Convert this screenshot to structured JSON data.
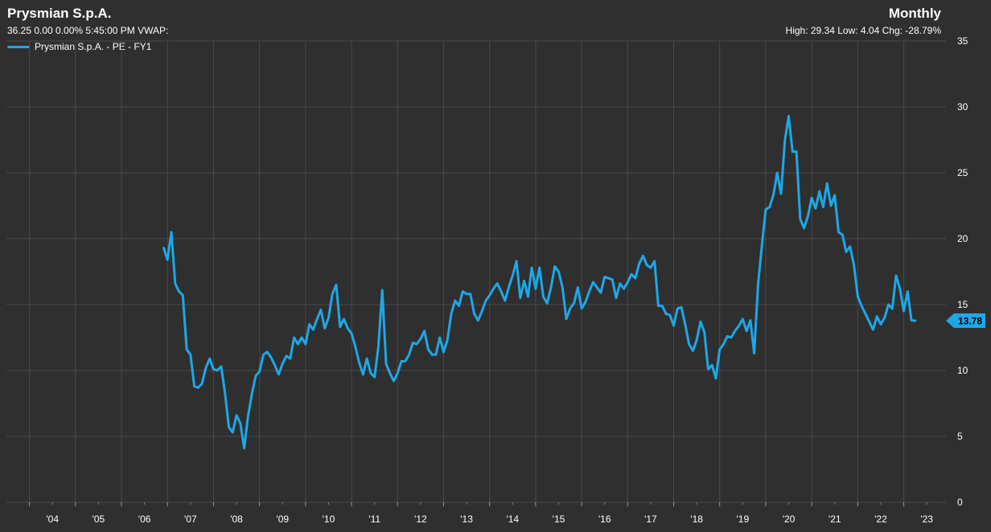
{
  "header": {
    "title": "Prysmian S.p.A.",
    "quote": "36.25 0.00 0.00% 5:45:00 PM VWAP:",
    "period": "Monthly",
    "stats": "High: 29.34 Low: 4.04 Chg: -28.79%"
  },
  "colors": {
    "background": "#2f2f2f",
    "grid": "#4a4a4a",
    "series": "#1ea7e8",
    "text": "#ffffff"
  },
  "chart_data": {
    "type": "line",
    "title": "Prysmian S.p.A.",
    "xlabel": "",
    "ylabel": "",
    "ylim": [
      0,
      35
    ],
    "yticks": [
      0,
      5,
      10,
      15,
      20,
      25,
      30,
      35
    ],
    "xtick_labels": [
      "'04",
      "'05",
      "'06",
      "'07",
      "'08",
      "'09",
      "'10",
      "'11",
      "'12",
      "'13",
      "'14",
      "'15",
      "'16",
      "'17",
      "'18",
      "'19",
      "'20",
      "'21",
      "'22",
      "'23"
    ],
    "xtick_years": [
      2004,
      2005,
      2006,
      2007,
      2008,
      2009,
      2010,
      2011,
      2012,
      2013,
      2014,
      2015,
      2016,
      2017,
      2018,
      2019,
      2020,
      2021,
      2022,
      2023
    ],
    "xlim": [
      "2003-07",
      "2023-12"
    ],
    "grid": true,
    "legend": "top-left",
    "last_value_label": "13.78",
    "series": [
      {
        "name": "Prysmian S.p.A. - PE - FY1",
        "points": [
          [
            "2006-12",
            19.3
          ],
          [
            "2007-01",
            18.4
          ],
          [
            "2007-02",
            20.5
          ],
          [
            "2007-03",
            16.6
          ],
          [
            "2007-04",
            16.0
          ],
          [
            "2007-05",
            15.7
          ],
          [
            "2007-06",
            11.6
          ],
          [
            "2007-07",
            11.2
          ],
          [
            "2007-08",
            8.8
          ],
          [
            "2007-09",
            8.7
          ],
          [
            "2007-10",
            9.0
          ],
          [
            "2007-11",
            10.2
          ],
          [
            "2007-12",
            10.9
          ],
          [
            "2008-01",
            10.1
          ],
          [
            "2008-02",
            10.0
          ],
          [
            "2008-03",
            10.3
          ],
          [
            "2008-04",
            8.3
          ],
          [
            "2008-05",
            5.7
          ],
          [
            "2008-06",
            5.3
          ],
          [
            "2008-07",
            6.6
          ],
          [
            "2008-08",
            6.0
          ],
          [
            "2008-09",
            4.1
          ],
          [
            "2008-10",
            6.5
          ],
          [
            "2008-11",
            8.2
          ],
          [
            "2008-12",
            9.6
          ],
          [
            "2009-01",
            9.9
          ],
          [
            "2009-02",
            11.2
          ],
          [
            "2009-03",
            11.4
          ],
          [
            "2009-04",
            11.0
          ],
          [
            "2009-05",
            10.4
          ],
          [
            "2009-06",
            9.7
          ],
          [
            "2009-07",
            10.5
          ],
          [
            "2009-08",
            11.1
          ],
          [
            "2009-09",
            10.9
          ],
          [
            "2009-10",
            12.5
          ],
          [
            "2009-11",
            12.0
          ],
          [
            "2009-12",
            12.5
          ],
          [
            "2010-01",
            12.0
          ],
          [
            "2010-02",
            13.5
          ],
          [
            "2010-03",
            13.1
          ],
          [
            "2010-04",
            13.9
          ],
          [
            "2010-05",
            14.6
          ],
          [
            "2010-06",
            13.2
          ],
          [
            "2010-07",
            14.0
          ],
          [
            "2010-08",
            15.8
          ],
          [
            "2010-09",
            16.5
          ],
          [
            "2010-10",
            13.3
          ],
          [
            "2010-11",
            13.9
          ],
          [
            "2010-12",
            13.2
          ],
          [
            "2011-01",
            12.8
          ],
          [
            "2011-02",
            11.8
          ],
          [
            "2011-03",
            10.6
          ],
          [
            "2011-04",
            9.7
          ],
          [
            "2011-05",
            10.9
          ],
          [
            "2011-06",
            9.8
          ],
          [
            "2011-07",
            9.5
          ],
          [
            "2011-08",
            11.8
          ],
          [
            "2011-09",
            16.1
          ],
          [
            "2011-10",
            10.5
          ],
          [
            "2011-11",
            9.8
          ],
          [
            "2011-12",
            9.2
          ],
          [
            "2012-01",
            9.8
          ],
          [
            "2012-02",
            10.7
          ],
          [
            "2012-03",
            10.7
          ],
          [
            "2012-04",
            11.2
          ],
          [
            "2012-05",
            12.1
          ],
          [
            "2012-06",
            12.0
          ],
          [
            "2012-07",
            12.4
          ],
          [
            "2012-08",
            13.0
          ],
          [
            "2012-09",
            11.6
          ],
          [
            "2012-10",
            11.2
          ],
          [
            "2012-11",
            11.2
          ],
          [
            "2012-12",
            12.5
          ],
          [
            "2013-01",
            11.4
          ],
          [
            "2013-02",
            12.3
          ],
          [
            "2013-03",
            14.3
          ],
          [
            "2013-04",
            15.3
          ],
          [
            "2013-05",
            14.9
          ],
          [
            "2013-06",
            16.0
          ],
          [
            "2013-07",
            15.8
          ],
          [
            "2013-08",
            15.8
          ],
          [
            "2013-09",
            14.3
          ],
          [
            "2013-10",
            13.8
          ],
          [
            "2013-11",
            14.5
          ],
          [
            "2013-12",
            15.3
          ],
          [
            "2014-01",
            15.7
          ],
          [
            "2014-02",
            16.2
          ],
          [
            "2014-03",
            16.6
          ],
          [
            "2014-04",
            16.0
          ],
          [
            "2014-05",
            15.3
          ],
          [
            "2014-06",
            16.3
          ],
          [
            "2014-07",
            17.2
          ],
          [
            "2014-08",
            18.3
          ],
          [
            "2014-09",
            15.5
          ],
          [
            "2014-10",
            16.8
          ],
          [
            "2014-11",
            15.6
          ],
          [
            "2014-12",
            17.8
          ],
          [
            "2015-01",
            16.2
          ],
          [
            "2015-02",
            17.8
          ],
          [
            "2015-03",
            15.6
          ],
          [
            "2015-04",
            15.1
          ],
          [
            "2015-05",
            16.3
          ],
          [
            "2015-06",
            17.9
          ],
          [
            "2015-07",
            17.5
          ],
          [
            "2015-08",
            16.3
          ],
          [
            "2015-09",
            13.9
          ],
          [
            "2015-10",
            14.7
          ],
          [
            "2015-11",
            15.1
          ],
          [
            "2015-12",
            16.3
          ],
          [
            "2016-01",
            14.7
          ],
          [
            "2016-02",
            15.2
          ],
          [
            "2016-03",
            16.0
          ],
          [
            "2016-04",
            16.7
          ],
          [
            "2016-05",
            16.3
          ],
          [
            "2016-06",
            15.9
          ],
          [
            "2016-07",
            17.1
          ],
          [
            "2016-08",
            17.0
          ],
          [
            "2016-09",
            16.9
          ],
          [
            "2016-10",
            15.5
          ],
          [
            "2016-11",
            16.6
          ],
          [
            "2016-12",
            16.2
          ],
          [
            "2017-01",
            16.7
          ],
          [
            "2017-02",
            17.3
          ],
          [
            "2017-03",
            17.0
          ],
          [
            "2017-04",
            18.1
          ],
          [
            "2017-05",
            18.7
          ],
          [
            "2017-06",
            18.0
          ],
          [
            "2017-07",
            17.8
          ],
          [
            "2017-08",
            18.3
          ],
          [
            "2017-09",
            14.9
          ],
          [
            "2017-10",
            14.9
          ],
          [
            "2017-11",
            14.3
          ],
          [
            "2017-12",
            14.2
          ],
          [
            "2018-01",
            13.4
          ],
          [
            "2018-02",
            14.7
          ],
          [
            "2018-03",
            14.8
          ],
          [
            "2018-04",
            13.5
          ],
          [
            "2018-05",
            12.0
          ],
          [
            "2018-06",
            11.5
          ],
          [
            "2018-07",
            12.3
          ],
          [
            "2018-08",
            13.7
          ],
          [
            "2018-09",
            12.9
          ],
          [
            "2018-10",
            10.1
          ],
          [
            "2018-11",
            10.4
          ],
          [
            "2018-12",
            9.4
          ],
          [
            "2019-01",
            11.6
          ],
          [
            "2019-02",
            12.0
          ],
          [
            "2019-03",
            12.6
          ],
          [
            "2019-04",
            12.5
          ],
          [
            "2019-05",
            13.0
          ],
          [
            "2019-06",
            13.4
          ],
          [
            "2019-07",
            13.9
          ],
          [
            "2019-08",
            13.0
          ],
          [
            "2019-09",
            13.8
          ],
          [
            "2019-10",
            11.3
          ],
          [
            "2019-11",
            16.5
          ],
          [
            "2019-12",
            19.5
          ],
          [
            "2020-01",
            22.2
          ],
          [
            "2020-02",
            22.4
          ],
          [
            "2020-03",
            23.3
          ],
          [
            "2020-04",
            25.0
          ],
          [
            "2020-05",
            23.4
          ],
          [
            "2020-06",
            27.5
          ],
          [
            "2020-07",
            29.3
          ],
          [
            "2020-08",
            26.6
          ],
          [
            "2020-09",
            26.6
          ],
          [
            "2020-10",
            21.5
          ],
          [
            "2020-11",
            20.8
          ],
          [
            "2020-12",
            21.7
          ],
          [
            "2021-01",
            23.1
          ],
          [
            "2021-02",
            22.3
          ],
          [
            "2021-03",
            23.6
          ],
          [
            "2021-04",
            22.4
          ],
          [
            "2021-05",
            24.2
          ],
          [
            "2021-06",
            22.5
          ],
          [
            "2021-07",
            23.3
          ],
          [
            "2021-08",
            20.5
          ],
          [
            "2021-09",
            20.3
          ],
          [
            "2021-10",
            19.0
          ],
          [
            "2021-11",
            19.4
          ],
          [
            "2021-12",
            18.0
          ],
          [
            "2022-01",
            15.6
          ],
          [
            "2022-02",
            14.9
          ],
          [
            "2022-03",
            14.3
          ],
          [
            "2022-04",
            13.7
          ],
          [
            "2022-05",
            13.1
          ],
          [
            "2022-06",
            14.1
          ],
          [
            "2022-07",
            13.5
          ],
          [
            "2022-08",
            14.0
          ],
          [
            "2022-09",
            15.0
          ],
          [
            "2022-10",
            14.7
          ],
          [
            "2022-11",
            17.2
          ],
          [
            "2022-12",
            16.2
          ],
          [
            "2023-01",
            14.5
          ],
          [
            "2023-02",
            16.0
          ],
          [
            "2023-03",
            13.8
          ],
          [
            "2023-04",
            13.78
          ]
        ]
      }
    ]
  }
}
